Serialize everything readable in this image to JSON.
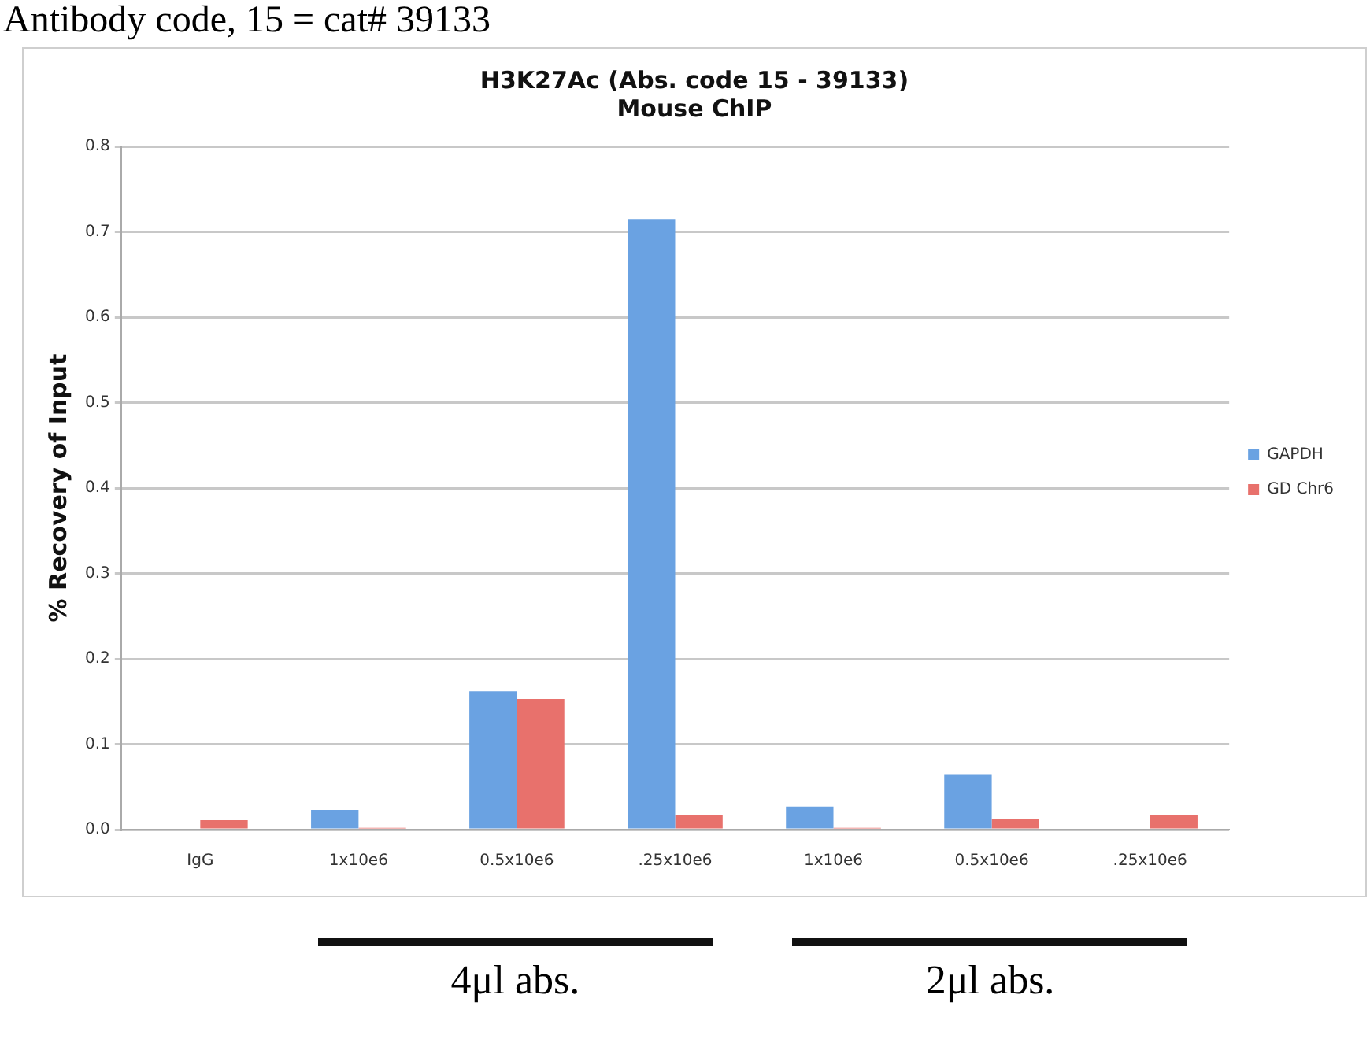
{
  "chart_data": {
    "type": "bar",
    "title": [
      "H3K27Ac (Abs. code 15 - 39133)",
      "Mouse ChIP"
    ],
    "ylabel": "% Recovery of Input",
    "categories": [
      "IgG",
      "1x10e6",
      "0.5x10e6",
      ".25x10e6",
      "1x10e6",
      "0.5x10e6",
      ".25x10e6"
    ],
    "series": [
      {
        "name": "GAPDH",
        "color": "#6aa2e2",
        "values": [
          0,
          0.023,
          0.162,
          0.715,
          0.027,
          0.065,
          0
        ]
      },
      {
        "name": "GD Chr6",
        "color": "#e8716c",
        "values": [
          0.011,
          0.002,
          0.153,
          0.017,
          0.002,
          0.012,
          0.017
        ]
      }
    ],
    "ylim": [
      0,
      0.8
    ],
    "yticks": [
      {
        "value": 0,
        "label": "0.0"
      },
      0.1,
      0.2,
      0.3,
      0.4,
      0.5,
      0.6,
      0.7,
      0.8
    ],
    "grid": "y",
    "legend": "right",
    "annotations": [
      "Antibody code, 15 = cat# 39133",
      "4μl abs.",
      "2μl abs."
    ]
  }
}
